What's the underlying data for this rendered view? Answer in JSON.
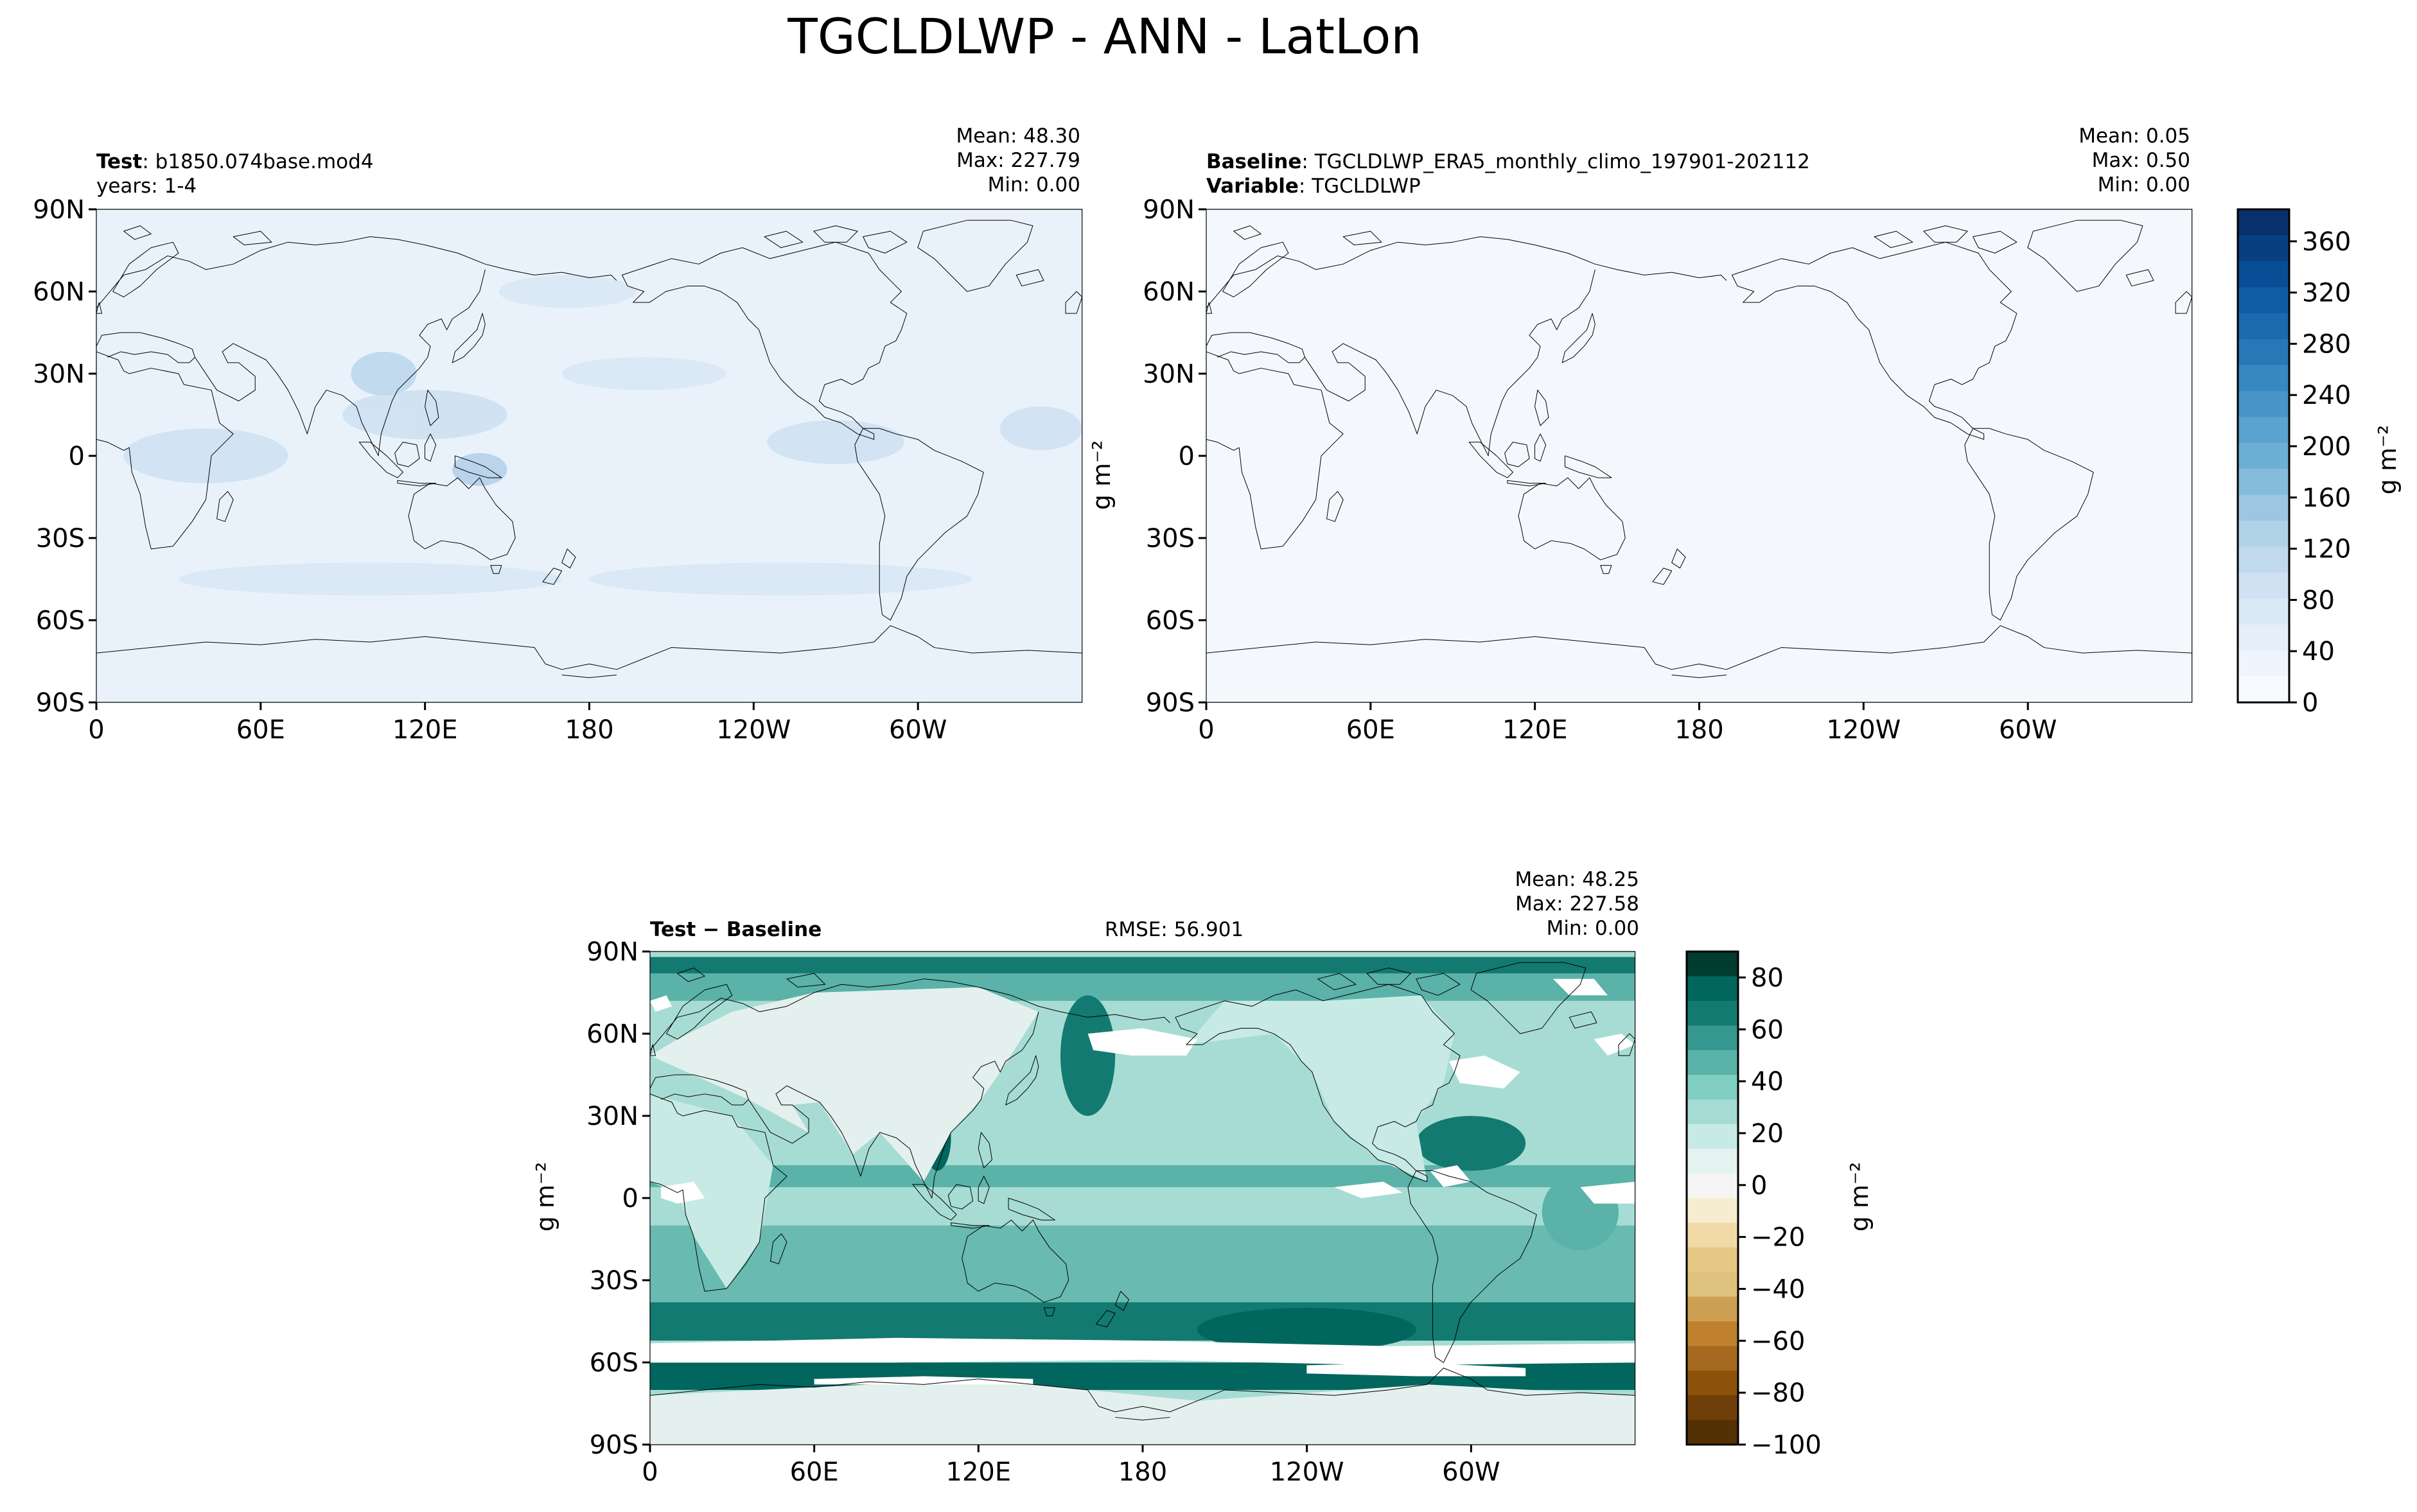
{
  "figure": {
    "title": "TGCLDLWP - ANN - LatLon"
  },
  "axes": {
    "lat_ticks": [
      "90N",
      "60N",
      "30N",
      "0",
      "30S",
      "60S",
      "90S"
    ],
    "lon_ticks": [
      "0",
      "60E",
      "120E",
      "180",
      "120W",
      "60W"
    ]
  },
  "units": "g m⁻²",
  "panels": {
    "test": {
      "label_bold": "Test",
      "label_value": "b1850.074base.mod4",
      "line2": "years: 1-4",
      "stats": [
        "Mean: 48.30",
        "Max: 227.79",
        "Min:  0.00"
      ]
    },
    "baseline": {
      "label_bold": "Baseline",
      "label_value": "TGCLDLWP_ERA5_monthly_climo_197901-202112",
      "line2_bold": "Variable",
      "line2_value": "TGCLDLWP",
      "stats": [
        "Mean:  0.05",
        "Max:  0.50",
        "Min:  0.00"
      ]
    },
    "diff": {
      "label": "Test − Baseline",
      "rmse": "RMSE: 56.901",
      "stats": [
        "Mean: 48.25",
        "Max: 227.58",
        "Min:  0.00"
      ]
    }
  },
  "colorbars": {
    "field": {
      "ticks": [
        "0",
        "40",
        "80",
        "120",
        "160",
        "200",
        "240",
        "280",
        "320",
        "360"
      ],
      "colors": [
        "#f7fbff",
        "#eef5fc",
        "#e5eff9",
        "#dbe9f6",
        "#d0e1f2",
        "#c1d9ed",
        "#b0d2e7",
        "#9cc6e1",
        "#85bcdb",
        "#6daed5",
        "#5aa2cf",
        "#4894c7",
        "#3787c0",
        "#2878b8",
        "#1b69af",
        "#105ba4",
        "#084d96",
        "#083f80",
        "#08306b"
      ]
    },
    "diff": {
      "ticks": [
        "80",
        "60",
        "40",
        "20",
        "0",
        "−20",
        "−40",
        "−60",
        "−80",
        "−100"
      ],
      "colors": [
        "#003c30",
        "#01665e",
        "#137a71",
        "#35978f",
        "#5ab2a8",
        "#80cdc1",
        "#a5dbd3",
        "#c7eae5",
        "#e4f2f0",
        "#f5f5f5",
        "#f6ecd0",
        "#f0dba8",
        "#e7c784",
        "#dfc27d",
        "#cd9f52",
        "#bf812d",
        "#a56a1f",
        "#8c510a",
        "#6e3f08",
        "#543005"
      ]
    }
  },
  "fill_colors": {
    "test_ocean": "#e9f2fb",
    "test_blob": "#c9def0",
    "baseline_fill": "#f4f8fd",
    "diff_base": "#a7dcd4",
    "diff_mid": "#5ab2a8",
    "diff_dark": "#137a71",
    "diff_darkest": "#01665e",
    "diff_land": "#e4f0ee",
    "diff_zero": "#ffffff"
  }
}
